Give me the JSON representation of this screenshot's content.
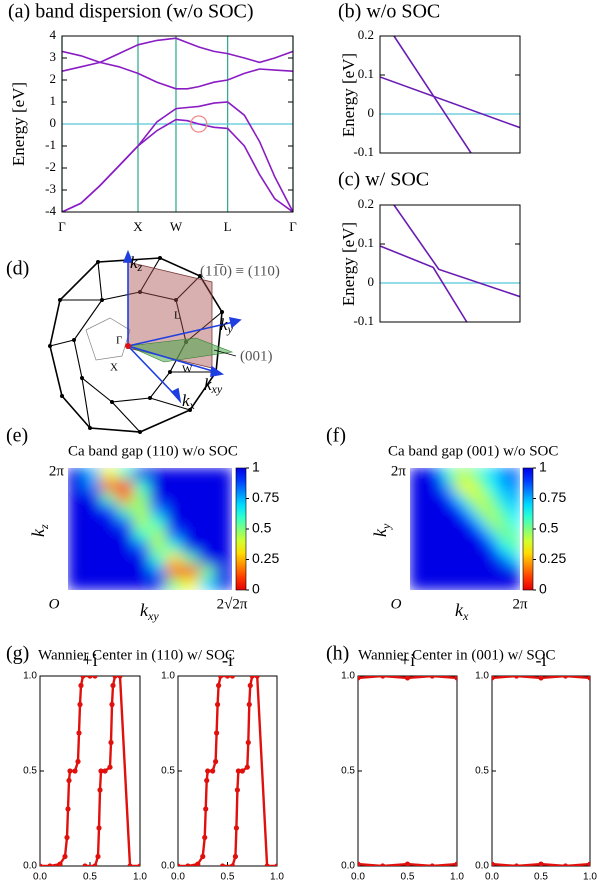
{
  "chart_data": [
    {
      "type": "line",
      "title": "(a) band dispersion (w/o SOC)",
      "y_label": "Energy [eV]",
      "x": [
        0,
        0.25,
        0.5,
        0.75,
        1,
        1.25,
        1.5,
        1.65,
        1.8,
        2.0,
        2.18,
        2.4,
        2.6,
        2.8,
        3.04
      ],
      "series": [
        {
          "color": "#8a1cc4",
          "values": [
            -4,
            -3.6,
            -2.8,
            -1.9,
            -1.0,
            -0.3,
            0.2,
            0.15,
            0,
            -0.15,
            -0.2,
            -1.0,
            -2.3,
            -3.4,
            -4
          ]
        },
        {
          "color": "#8a1cc4",
          "values": [
            -4,
            -3.6,
            -2.8,
            -1.9,
            -1.0,
            0.1,
            0.7,
            0.75,
            0.8,
            0.95,
            1.0,
            0.4,
            -0.8,
            -2.4,
            -4
          ]
        },
        {
          "color": "#8a1cc4",
          "values": [
            2.4,
            2.6,
            2.8,
            2.6,
            2.3,
            1.9,
            1.6,
            1.6,
            1.7,
            1.9,
            2.0,
            2.3,
            2.5,
            2.45,
            2.4
          ]
        },
        {
          "color": "#8a1cc4",
          "values": [
            3.3,
            3.1,
            2.8,
            3.2,
            3.6,
            3.8,
            3.9,
            3.7,
            3.5,
            3.3,
            3.2,
            3.0,
            2.8,
            3.0,
            3.3
          ]
        }
      ],
      "xlim": [
        0,
        3.04
      ],
      "xticks": [
        {
          "value": 0,
          "label": "Γ"
        },
        {
          "value": 1,
          "label": "X"
        },
        {
          "value": 1.5,
          "label": "W"
        },
        {
          "value": 2.18,
          "label": "L"
        },
        {
          "value": 3.04,
          "label": "Γ"
        }
      ],
      "ylim": [
        -4,
        4
      ],
      "yticks": [
        -4,
        -3,
        -2,
        -1,
        0,
        1,
        2,
        3,
        4
      ],
      "x_grid_color": "#2aa88a",
      "reference_line": {
        "y": 0,
        "color": "#56c8d8"
      },
      "marker": {
        "x": 1.8,
        "y": 0,
        "color": "#f08a8a"
      }
    },
    {
      "type": "line",
      "title": "(b) w/o SOC",
      "y_label": "Energy [eV]",
      "xlim": [
        0,
        1
      ],
      "ylim": [
        -0.1,
        0.2
      ],
      "yticks": [
        -0.1,
        0,
        0.1,
        0.2
      ],
      "reference_line": {
        "y": 0,
        "color": "#56c8d8"
      },
      "series": [
        {
          "color": "#6a1cb4",
          "x": [
            0.1,
            0.65
          ],
          "values": [
            0.2,
            -0.1
          ]
        },
        {
          "color": "#6a1cb4",
          "x": [
            0,
            1
          ],
          "values": [
            0.095,
            -0.035
          ]
        }
      ]
    },
    {
      "type": "line",
      "title": "(c) w/ SOC",
      "y_label": "Energy [eV]",
      "xlim": [
        0,
        1
      ],
      "ylim": [
        -0.1,
        0.2
      ],
      "yticks": [
        -0.1,
        0,
        0.1,
        0.2
      ],
      "reference_line": {
        "y": 0,
        "color": "#56c8d8"
      },
      "series": [
        {
          "color": "#6a1cb4",
          "x": [
            0,
            0.38,
            0.62
          ],
          "values": [
            0.095,
            0.04,
            -0.1
          ]
        },
        {
          "color": "#6a1cb4",
          "x": [
            0.1,
            0.42,
            1
          ],
          "values": [
            0.2,
            0.035,
            -0.035
          ]
        }
      ]
    },
    {
      "type": "heatmap",
      "label": "(e)",
      "title": "Ca band gap (110) w/o SOC",
      "x_label": {
        "base": "k",
        "sub": "xy"
      },
      "y_label": {
        "base": "k",
        "sub": "z"
      },
      "origin_label": "O",
      "x_end_label": "2√2π",
      "y_end_label": "2π",
      "colorbar_lim": [
        0,
        1
      ],
      "colorbar_ticks": [
        0,
        0.25,
        0.5,
        0.75,
        1
      ],
      "z": [
        [
          1,
          0.75,
          0.35,
          0.6,
          1,
          1,
          1,
          1,
          1,
          1
        ],
        [
          1,
          0.8,
          0.15,
          0.05,
          0.6,
          1,
          1,
          1,
          1,
          1
        ],
        [
          1,
          1,
          0.55,
          0.2,
          0.5,
          1,
          1,
          1,
          1,
          1
        ],
        [
          1,
          1,
          0.9,
          0.55,
          0.45,
          0.8,
          1,
          1,
          1,
          1
        ],
        [
          1,
          1,
          1,
          0.85,
          0.45,
          0.6,
          1,
          1,
          1,
          1
        ],
        [
          1,
          1,
          1,
          1,
          0.6,
          0.45,
          0.85,
          1,
          1,
          1
        ],
        [
          1,
          1,
          1,
          1,
          0.85,
          0.45,
          0.6,
          1,
          1,
          1
        ],
        [
          1,
          1,
          1,
          1,
          1,
          0.6,
          0.3,
          0.55,
          1,
          1
        ],
        [
          1,
          1,
          1,
          1,
          1,
          0.8,
          0.15,
          0.05,
          0.5,
          1
        ],
        [
          1,
          1,
          1,
          1,
          1,
          1,
          0.5,
          0.35,
          0.7,
          1
        ]
      ]
    },
    {
      "type": "heatmap",
      "label": "(f)",
      "title": "Ca band gap (001) w/o SOC",
      "x_label": {
        "base": "k",
        "sub": "x"
      },
      "y_label": {
        "base": "k",
        "sub": "y"
      },
      "origin_label": "O",
      "x_end_label": "2π",
      "y_end_label": "2π",
      "colorbar_lim": [
        0,
        1
      ],
      "colorbar_ticks": [
        0,
        0.25,
        0.5,
        0.75,
        1
      ],
      "z": [
        [
          1,
          1,
          0.9,
          0.6,
          0.45,
          0.5,
          0.6,
          0.7,
          0.8,
          0.85
        ],
        [
          1,
          1,
          1,
          0.75,
          0.4,
          0.35,
          0.5,
          0.65,
          0.75,
          0.8
        ],
        [
          1,
          1,
          1,
          0.95,
          0.7,
          0.45,
          0.4,
          0.55,
          0.7,
          0.75
        ],
        [
          1,
          1,
          1,
          1,
          0.95,
          0.7,
          0.45,
          0.45,
          0.6,
          0.7
        ],
        [
          1,
          1,
          1,
          1,
          1,
          0.95,
          0.7,
          0.45,
          0.5,
          0.65
        ],
        [
          1,
          1,
          1,
          1,
          1,
          1,
          0.95,
          0.7,
          0.5,
          0.55
        ],
        [
          1,
          1,
          1,
          1,
          1,
          1,
          1,
          0.9,
          0.65,
          0.55
        ],
        [
          1,
          1,
          1,
          1,
          1,
          1,
          1,
          1,
          0.85,
          0.7
        ],
        [
          1,
          1,
          1,
          1,
          1,
          1,
          1,
          1,
          1,
          1
        ],
        [
          1,
          1,
          1,
          1,
          1,
          1,
          1,
          1,
          1,
          1
        ]
      ]
    },
    {
      "type": "scatter",
      "title": "+i",
      "xlim": [
        0,
        1
      ],
      "ylim": [
        0,
        1
      ],
      "xticks": [
        {
          "value": 0,
          "label": "0.0"
        },
        {
          "value": 0.5,
          "label": "0.5"
        },
        {
          "value": 1,
          "label": "1.0"
        }
      ],
      "yticks": [
        {
          "value": 0,
          "label": "0.0"
        },
        {
          "value": 0.5,
          "label": "0.5"
        },
        {
          "value": 1,
          "label": "1.0"
        }
      ],
      "series": [
        {
          "color": "#e0100c",
          "x": [
            0.0,
            0.1,
            0.2,
            0.25,
            0.27,
            0.28,
            0.29,
            0.3,
            0.35,
            0.38,
            0.39,
            0.4,
            0.41,
            0.43,
            0.5,
            0.55
          ],
          "values": [
            0.0,
            0.0,
            0.01,
            0.05,
            0.15,
            0.3,
            0.45,
            0.5,
            0.5,
            0.55,
            0.7,
            0.85,
            0.95,
            1.0,
            1.0,
            1.0
          ]
        },
        {
          "color": "#e0100c",
          "x": [
            0.45,
            0.55,
            0.58,
            0.59,
            0.6,
            0.61,
            0.65,
            0.7,
            0.71,
            0.72,
            0.73,
            0.75,
            0.8,
            0.9,
            1.0
          ],
          "values": [
            0.0,
            0.0,
            0.05,
            0.2,
            0.4,
            0.5,
            0.5,
            0.52,
            0.65,
            0.85,
            0.95,
            1.0,
            1.0,
            0.0,
            0.0
          ]
        }
      ]
    },
    {
      "type": "scatter",
      "title": "-i",
      "xlim": [
        0,
        1
      ],
      "ylim": [
        0,
        1
      ],
      "xticks": [
        {
          "value": 0,
          "label": "0.0"
        },
        {
          "value": 0.5,
          "label": "0.5"
        },
        {
          "value": 1,
          "label": "1.0"
        }
      ],
      "yticks": [
        {
          "value": 0,
          "label": "0.0"
        },
        {
          "value": 0.5,
          "label": "0.5"
        },
        {
          "value": 1,
          "label": "1.0"
        }
      ],
      "series": [
        {
          "color": "#e0100c",
          "x": [
            0.0,
            0.1,
            0.2,
            0.25,
            0.27,
            0.28,
            0.29,
            0.3,
            0.35,
            0.38,
            0.39,
            0.4,
            0.41,
            0.43,
            0.5,
            0.55
          ],
          "values": [
            0.0,
            0.0,
            0.01,
            0.05,
            0.15,
            0.3,
            0.45,
            0.5,
            0.5,
            0.55,
            0.7,
            0.85,
            0.95,
            1.0,
            1.0,
            1.0
          ]
        },
        {
          "color": "#e0100c",
          "x": [
            0.45,
            0.55,
            0.58,
            0.59,
            0.6,
            0.61,
            0.65,
            0.7,
            0.71,
            0.72,
            0.73,
            0.75,
            0.8,
            0.9,
            1.0
          ],
          "values": [
            0.0,
            0.0,
            0.05,
            0.2,
            0.4,
            0.5,
            0.5,
            0.52,
            0.65,
            0.85,
            0.95,
            1.0,
            1.0,
            0.0,
            0.0
          ]
        }
      ]
    },
    {
      "type": "scatter",
      "title": "+i",
      "xlim": [
        0,
        1
      ],
      "ylim": [
        0,
        1
      ],
      "xticks": [
        {
          "value": 0,
          "label": "0.0"
        },
        {
          "value": 0.5,
          "label": "0.5"
        },
        {
          "value": 1,
          "label": "1.0"
        }
      ],
      "yticks": [
        {
          "value": 0,
          "label": "0.0"
        },
        {
          "value": 0.5,
          "label": "0.5"
        },
        {
          "value": 1,
          "label": "1.0"
        }
      ],
      "series": [
        {
          "color": "#e0100c",
          "x": [
            0,
            0.25,
            0.5,
            0.75,
            1
          ],
          "values": [
            0.01,
            0.0,
            0.01,
            0.0,
            0.01
          ]
        },
        {
          "color": "#e0100c",
          "x": [
            0,
            0.25,
            0.5,
            0.75,
            1
          ],
          "values": [
            0.99,
            1.0,
            0.99,
            1.0,
            0.99
          ]
        }
      ]
    },
    {
      "type": "scatter",
      "title": "-i",
      "xlim": [
        0,
        1
      ],
      "ylim": [
        0,
        1
      ],
      "xticks": [
        {
          "value": 0,
          "label": "0.0"
        },
        {
          "value": 0.5,
          "label": "0.5"
        },
        {
          "value": 1,
          "label": "1.0"
        }
      ],
      "yticks": [
        {
          "value": 0,
          "label": "0.0"
        },
        {
          "value": 0.5,
          "label": "0.5"
        },
        {
          "value": 1,
          "label": "1.0"
        }
      ],
      "series": [
        {
          "color": "#e0100c",
          "x": [
            0,
            0.25,
            0.5,
            0.75,
            1
          ],
          "values": [
            0.01,
            0.0,
            0.01,
            0.0,
            0.01
          ]
        },
        {
          "color": "#e0100c",
          "x": [
            0,
            0.25,
            0.5,
            0.75,
            1
          ],
          "values": [
            0.99,
            1.0,
            0.99,
            1.0,
            0.99
          ]
        }
      ]
    }
  ],
  "headers": [
    {
      "label": "(g)",
      "title": "Wannier Center in (110) w/ SOC"
    },
    {
      "label": "(h)",
      "title": "Wannier Center in (001) w/ SOC"
    }
  ],
  "diagram": {
    "label": "(d)",
    "kz": {
      "base": "k",
      "sub": "z"
    },
    "ky": {
      "base": "k",
      "sub": "y"
    },
    "kxy": {
      "base": "k",
      "sub": "xy"
    },
    "kx": {
      "base": "k",
      "sub": "x"
    },
    "plane_110": "(11̅0) ≡ (110)",
    "plane_001": "(001)",
    "gamma": "Γ",
    "l": "L",
    "x": "X",
    "w": "W"
  }
}
